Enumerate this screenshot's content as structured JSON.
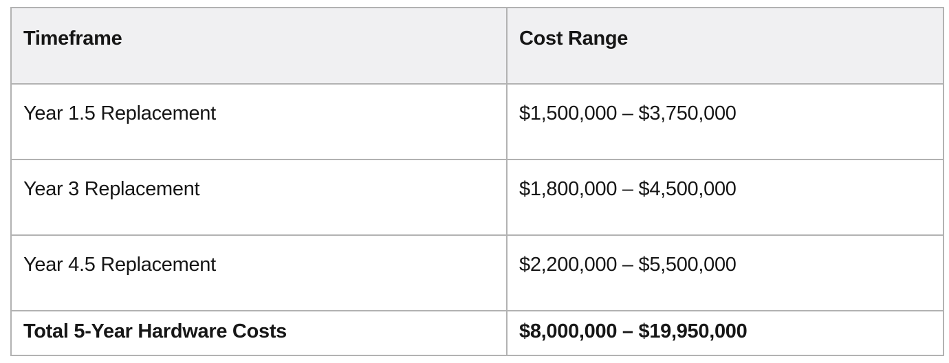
{
  "table": {
    "columns": [
      {
        "label": "Timeframe"
      },
      {
        "label": "Cost Range"
      }
    ],
    "rows": [
      {
        "timeframe": "Year 1.5 Replacement",
        "cost_range": "$1,500,000 – $3,750,000",
        "bold": false
      },
      {
        "timeframe": "Year 3 Replacement",
        "cost_range": "$1,800,000 – $4,500,000",
        "bold": false
      },
      {
        "timeframe": "Year 4.5 Replacement",
        "cost_range": "$2,200,000 – $5,500,000",
        "bold": false
      },
      {
        "timeframe": "Total 5-Year Hardware Costs",
        "cost_range": "$8,000,000 – $19,950,000",
        "bold": true
      }
    ],
    "colors": {
      "border": "#b2b2b2",
      "header_background": "#f0f0f2",
      "body_background": "#ffffff",
      "text": "#161616"
    }
  },
  "chart_data": {
    "type": "table",
    "title": "",
    "columns": [
      "Timeframe",
      "Cost Range"
    ],
    "rows": [
      [
        "Year 1.5 Replacement",
        "$1,500,000 – $3,750,000"
      ],
      [
        "Year 3 Replacement",
        "$1,800,000 – $4,500,000"
      ],
      [
        "Year 4.5 Replacement",
        "$2,200,000 – $5,500,000"
      ],
      [
        "Total 5-Year Hardware Costs",
        "$8,000,000 – $19,950,000"
      ]
    ],
    "cost_ranges_numeric_usd": {
      "year_1_5_replacement": {
        "low": 1500000,
        "high": 3750000
      },
      "year_3_replacement": {
        "low": 1800000,
        "high": 4500000
      },
      "year_4_5_replacement": {
        "low": 2200000,
        "high": 5500000
      },
      "total_5_year_hardware_costs": {
        "low": 8000000,
        "high": 19950000
      }
    }
  }
}
